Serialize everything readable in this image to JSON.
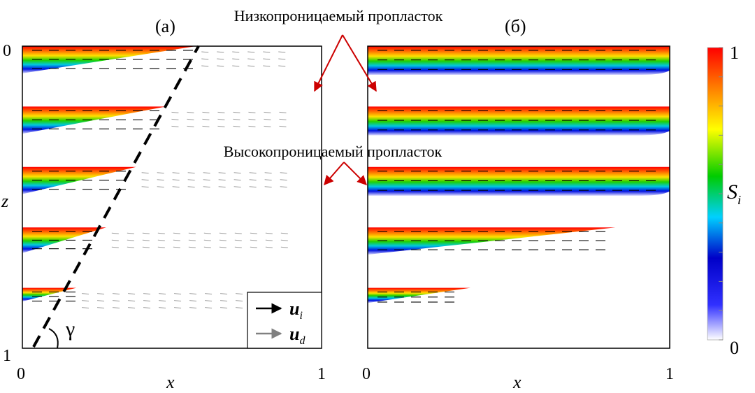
{
  "panels": [
    {
      "id": "a",
      "label": "(а)",
      "x_tick_min": "0",
      "x_tick_max": "1",
      "z_tick_top": "0",
      "z_tick_bottom": "1",
      "x_axis_label": "x",
      "z_axis_label": "z",
      "angle_label": "γ",
      "legend": {
        "ui_label": "u",
        "ui_sub": "i",
        "ud_label": "u",
        "ud_sub": "d",
        "ui_color": "#000000",
        "ud_color": "#808080"
      },
      "layers": [
        {
          "top": 0.0,
          "thick": 0.09,
          "length": 0.58
        },
        {
          "top": 0.2,
          "thick": 0.09,
          "length": 0.48
        },
        {
          "top": 0.4,
          "thick": 0.09,
          "length": 0.38
        },
        {
          "top": 0.6,
          "thick": 0.085,
          "length": 0.28
        },
        {
          "top": 0.8,
          "thick": 0.045,
          "length": 0.18
        }
      ]
    },
    {
      "id": "b",
      "label": "(б)",
      "x_tick_min": "0",
      "x_tick_max": "1",
      "x_axis_label": "x",
      "layers": [
        {
          "top": 0.0,
          "thick": 0.095,
          "length": 1.0
        },
        {
          "top": 0.2,
          "thick": 0.095,
          "length": 1.0
        },
        {
          "top": 0.4,
          "thick": 0.095,
          "length": 1.0
        },
        {
          "top": 0.6,
          "thick": 0.09,
          "length": 0.82
        },
        {
          "top": 0.8,
          "thick": 0.05,
          "length": 0.34
        }
      ]
    }
  ],
  "annotations": {
    "low_perm": "Низкопроницаемый пропласток",
    "high_perm": "Высокопроницаемый пропласток",
    "arrow_color": "#cc0000"
  },
  "colorbar": {
    "label": "S",
    "label_sub": "i",
    "tick_max": "1",
    "tick_min": "0",
    "range": [
      0,
      1
    ],
    "colors": [
      "#ffffff",
      "#0000d0",
      "#00c8ff",
      "#00d000",
      "#ffff00",
      "#ff8000",
      "#ff0000"
    ]
  }
}
